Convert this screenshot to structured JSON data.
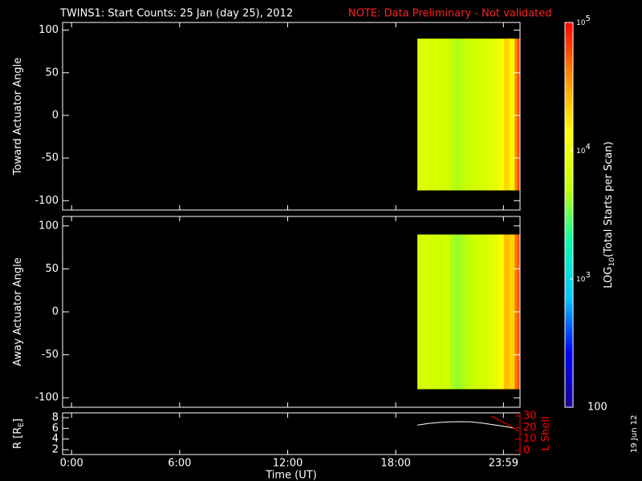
{
  "title": "TWINS1: Start Counts: 25 Jan (day  25), 2012",
  "note": "NOTE: Data Preliminary - Not validated",
  "date": "19 Jun 12",
  "chart_data": [
    {
      "type": "heatmap",
      "ylabel": "Toward Actuator Angle",
      "xlim": [
        -0.5,
        24.9
      ],
      "ylim": [
        -111,
        109
      ],
      "yticks": [
        100,
        50,
        0,
        -50,
        -100
      ],
      "y_range": [
        -88,
        90
      ],
      "x_bins": [
        19.2,
        19.5,
        19.8,
        20.1,
        20.4,
        20.7,
        21.0,
        21.3,
        21.6,
        21.9,
        22.2,
        22.5,
        22.8,
        23.1,
        23.4,
        23.7,
        24.0,
        24.3,
        24.6,
        24.75,
        24.9
      ],
      "values": [
        7000,
        7500,
        6500,
        7000,
        6000,
        6500,
        5000,
        4500,
        5000,
        5500,
        6000,
        6500,
        7000,
        8000,
        9000,
        12000,
        20000,
        15000,
        40000,
        60000
      ]
    },
    {
      "type": "heatmap",
      "ylabel": "Away Actuator Angle",
      "xlim": [
        -0.5,
        24.9
      ],
      "ylim": [
        -111,
        111
      ],
      "yticks": [
        100,
        50,
        0,
        -50,
        -100
      ],
      "y_range": [
        -90,
        90
      ],
      "x_bins": [
        19.2,
        19.5,
        19.8,
        20.1,
        20.4,
        20.7,
        21.0,
        21.3,
        21.6,
        21.9,
        22.2,
        22.5,
        22.8,
        23.1,
        23.4,
        23.7,
        24.0,
        24.3,
        24.6,
        24.75,
        24.9
      ],
      "values": [
        6500,
        7000,
        6000,
        6500,
        5500,
        6000,
        4500,
        4000,
        4500,
        5000,
        5500,
        6000,
        6500,
        7500,
        9000,
        13000,
        25000,
        20000,
        45000,
        55000
      ]
    },
    {
      "type": "line",
      "xlim": [
        -0.5,
        24.9
      ],
      "xlabel": "Time (UT)",
      "xticks": [
        {
          "value": 0,
          "label": "0:00"
        },
        {
          "value": 6,
          "label": "6:00"
        },
        {
          "value": 12,
          "label": "12:00"
        },
        {
          "value": 18,
          "label": "18:00"
        },
        {
          "value": 23.98,
          "label": "23:59"
        }
      ],
      "ylabel": "R [R",
      "ylabel_sub": "E",
      "ylabel_end": "]",
      "ylim": [
        1.1,
        8.9
      ],
      "yticks": [
        2,
        4,
        6,
        8
      ],
      "y2label": "L Shell",
      "y2lim": [
        -3.5,
        32.8
      ],
      "y2ticks": [
        0,
        10,
        20,
        30
      ],
      "y2color": "#ff0000",
      "series": [
        {
          "color": "#ffffff",
          "x": [
            19.2,
            19.8,
            20.4,
            21.0,
            21.6,
            22.2,
            22.8,
            23.4,
            24.0,
            24.6
          ],
          "values": [
            6.6,
            6.9,
            7.1,
            7.2,
            7.25,
            7.2,
            7.0,
            6.7,
            6.4,
            6.0
          ]
        },
        {
          "color": "#ff0000",
          "axis": "y2",
          "x": [
            23.3,
            23.8,
            24.3,
            24.8
          ],
          "values": [
            30,
            26,
            22,
            17
          ]
        }
      ]
    },
    {
      "type": "colorbar",
      "label": "LOG",
      "label_sub": "10",
      "label_end": "(Total Starts per Scan)",
      "scale": "log",
      "ylim": [
        100,
        100000
      ],
      "yticks": [
        100,
        {
          "value": 1000,
          "label": "10",
          "exponent": "3"
        },
        {
          "value": 10000,
          "label": "10",
          "exponent": "4"
        },
        {
          "value": 100000,
          "label": "10",
          "exponent": "5"
        }
      ],
      "colors": [
        "#1a0090",
        "#0000ff",
        "#00c8ff",
        "#00ffb0",
        "#c8ff00",
        "#ffff00",
        "#ff9000",
        "#ff0000"
      ]
    }
  ]
}
